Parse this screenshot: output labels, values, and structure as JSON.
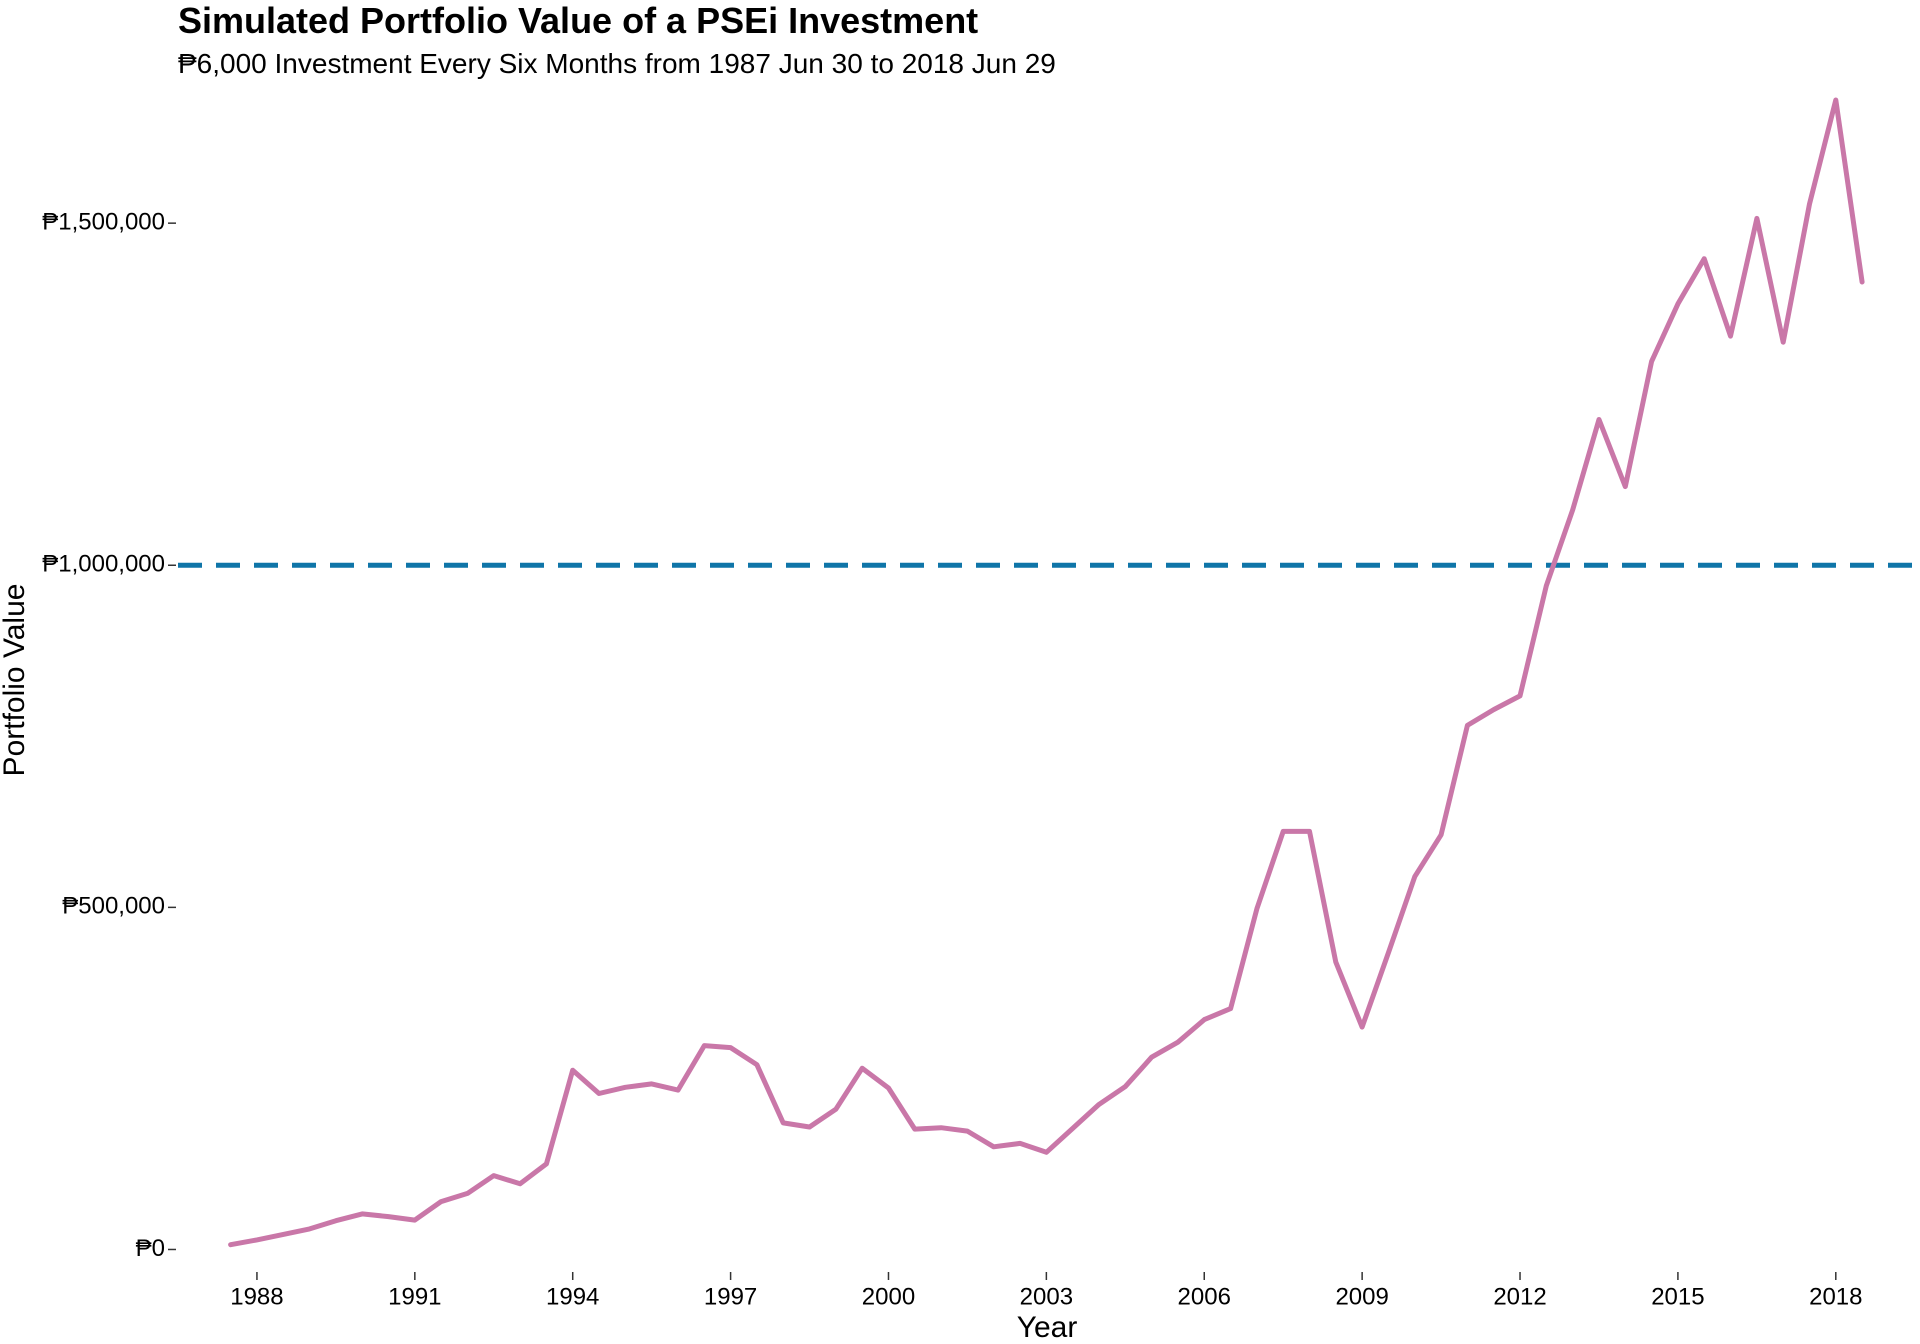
{
  "chart_data": {
    "type": "line",
    "title": "Simulated Portfolio Value of a PSEi Investment",
    "subtitle": "₱6,000 Investment Every Six Months from 1987 Jun 30 to 2018 Jun 29",
    "xlabel": "Year",
    "ylabel": "Portfolio Value",
    "xlim": [
      1986.5,
      2019.6
    ],
    "ylim": [
      -30000,
      1680000
    ],
    "x_ticks": [
      1988,
      1991,
      1994,
      1997,
      2000,
      2003,
      2006,
      2009,
      2012,
      2015,
      2018
    ],
    "x_tick_labels": [
      "1988",
      "1991",
      "1994",
      "1997",
      "2000",
      "2003",
      "2006",
      "2009",
      "2012",
      "2015",
      "2018"
    ],
    "y_ticks": [
      0,
      500000,
      1000000,
      1500000
    ],
    "y_tick_labels": [
      "₱0",
      "₱500,000",
      "₱1,000,000",
      "₱1,500,000"
    ],
    "grid": false,
    "legend": "none",
    "reference_line": {
      "y": 1000000,
      "style": "dashed",
      "color": "#0f75a8"
    },
    "series": [
      {
        "color": "#c977a8",
        "x": [
          1987.5,
          1988.0,
          1988.5,
          1989.0,
          1989.5,
          1990.0,
          1990.5,
          1991.0,
          1991.5,
          1992.0,
          1992.5,
          1993.0,
          1993.5,
          1994.0,
          1994.5,
          1995.0,
          1995.5,
          1996.0,
          1996.5,
          1997.0,
          1997.5,
          1998.0,
          1998.5,
          1999.0,
          1999.5,
          2000.0,
          2000.5,
          2001.0,
          2001.5,
          2002.0,
          2002.5,
          2003.0,
          2003.5,
          2004.0,
          2004.5,
          2005.0,
          2005.5,
          2006.0,
          2006.5,
          2007.0,
          2007.5,
          2008.0,
          2008.5,
          2009.0,
          2009.5,
          2010.0,
          2010.5,
          2011.0,
          2011.5,
          2012.0,
          2012.5,
          2013.0,
          2013.5,
          2014.0,
          2014.5,
          2015.0,
          2015.5,
          2016.0,
          2016.5,
          2017.0,
          2017.5,
          2018.0,
          2018.5
        ],
        "values": [
          7000,
          14000,
          22000,
          30000,
          42000,
          52000,
          48000,
          43000,
          70000,
          82000,
          108000,
          96000,
          125000,
          262000,
          228000,
          237000,
          242000,
          233000,
          298000,
          295000,
          270000,
          185000,
          179000,
          205000,
          265000,
          236000,
          176000,
          178000,
          173000,
          150000,
          155000,
          142000,
          177000,
          212000,
          238000,
          281000,
          303000,
          336000,
          352000,
          498000,
          611000,
          611000,
          420000,
          325000,
          434000,
          545000,
          606000,
          766000,
          789000,
          809000,
          970000,
          1081000,
          1213000,
          1115000,
          1298000,
          1382000,
          1448000,
          1335000,
          1507000,
          1326000,
          1528000,
          1680000,
          1414000
        ]
      }
    ]
  }
}
